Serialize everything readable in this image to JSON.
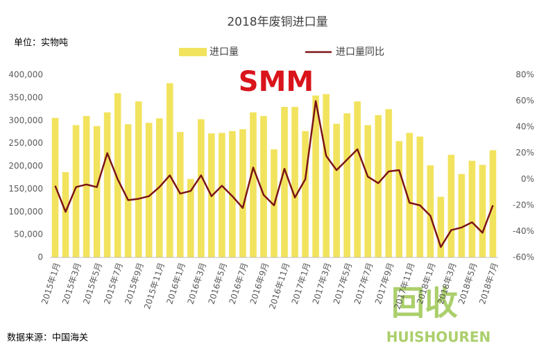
{
  "chart_data": {
    "type": "bar",
    "title": "2018年废铜进口量",
    "unit_note": "单位：实物吨",
    "source_note": "数据来源：中国海关",
    "logo": "SMM",
    "watermark": [
      "回收",
      "HUISHOUREN"
    ],
    "categories": [
      "2015年1月",
      null,
      "2015年3月",
      null,
      "2015年5月",
      null,
      "2015年7月",
      null,
      "2015年9月",
      null,
      "2015年11月",
      null,
      "2016年1月",
      null,
      "2016年3月",
      null,
      "2016年5月",
      null,
      "2016年7月",
      null,
      "2016年9月",
      null,
      "2016年11月",
      null,
      "2017年1月",
      null,
      "2017年3月",
      null,
      "2017年5月",
      null,
      "2017年7月",
      null,
      "2017年9月",
      null,
      "2017年11月",
      null,
      "2018年1月",
      null,
      "2018年3月",
      null,
      "2018年5月",
      null,
      "2018年7月"
    ],
    "series": [
      {
        "name": "进口量",
        "type": "bar",
        "color": "#f2e35e",
        "values": [
          306000,
          187000,
          290000,
          310000,
          288000,
          318000,
          360000,
          292000,
          342000,
          295000,
          305000,
          382000,
          275000,
          172000,
          303000,
          272000,
          273000,
          277000,
          281000,
          318000,
          310000,
          237000,
          330000,
          330000,
          277000,
          355000,
          358000,
          293000,
          316000,
          342000,
          290000,
          312000,
          325000,
          255000,
          273000,
          265000,
          202000,
          133000,
          225000,
          183000,
          212000,
          203000,
          235000
        ]
      },
      {
        "name": "进口量同比",
        "type": "line",
        "axis": "y2",
        "color": "#7b1416",
        "values": [
          -5,
          -25,
          -6,
          -4,
          -6,
          20,
          0,
          -16,
          -15,
          -13,
          -6,
          3,
          -11,
          -9,
          3,
          -13,
          -5,
          -13,
          -22,
          9,
          -12,
          -20,
          8,
          -14,
          0,
          60,
          18,
          7,
          15,
          23,
          2,
          -3,
          6,
          7,
          -18,
          -20,
          -28,
          -52,
          -39,
          -37,
          -33,
          -41,
          -20
        ]
      }
    ],
    "ylim": [
      0,
      400000
    ],
    "yticks": [
      0,
      {
        "value": 50000,
        "label": "50,000"
      },
      {
        "value": 100000,
        "label": "100,000"
      },
      {
        "value": 150000,
        "label": "150,000"
      },
      {
        "value": 200000,
        "label": "200,000"
      },
      {
        "value": 250000,
        "label": "250,000"
      },
      {
        "value": 300000,
        "label": "300,000"
      },
      {
        "value": 350000,
        "label": "350,000"
      },
      {
        "value": 400000,
        "label": "400,000"
      }
    ],
    "y2lim": [
      -60,
      80
    ],
    "y2ticks": [
      {
        "value": -60,
        "label": "-60%"
      },
      {
        "value": -40,
        "label": "-40%"
      },
      {
        "value": -20,
        "label": "-20%"
      },
      {
        "value": 0,
        "label": "0%"
      },
      {
        "value": 20,
        "label": "20%"
      },
      {
        "value": 40,
        "label": "40%"
      },
      {
        "value": 60,
        "label": "60%"
      },
      {
        "value": 80,
        "label": "80%"
      }
    ],
    "grid": false
  }
}
